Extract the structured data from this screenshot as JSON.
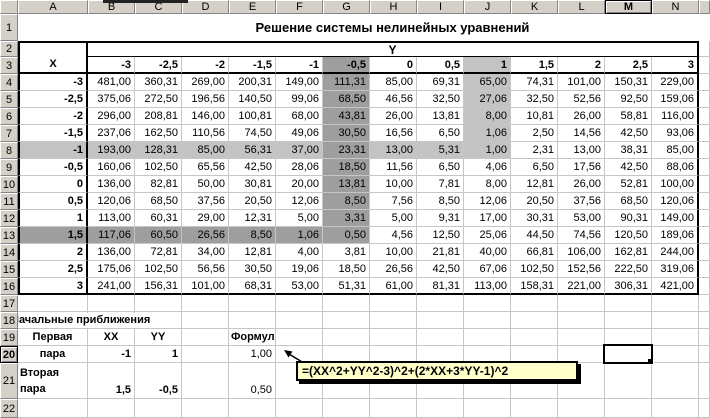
{
  "window": {
    "selected_column": "M",
    "selected_row": "20"
  },
  "sheet": {
    "title": "Решение системы нелинейных уравнений",
    "x_label": "X",
    "y_label": "Y",
    "column_letters": [
      "A",
      "B",
      "C",
      "D",
      "E",
      "F",
      "G",
      "H",
      "I",
      "J",
      "K",
      "L",
      "M",
      "N"
    ],
    "row_numbers": [
      "1",
      "2",
      "3",
      "4",
      "5",
      "6",
      "7",
      "8",
      "9",
      "10",
      "11",
      "12",
      "13",
      "14",
      "15",
      "16",
      "17",
      "18",
      "19",
      "20",
      "21",
      "22"
    ],
    "y_headers": [
      "-3",
      "-2,5",
      "-2",
      "-1,5",
      "-1",
      "-0,5",
      "0",
      "0,5",
      "1",
      "1,5",
      "2",
      "2,5",
      "3"
    ],
    "x_headers": [
      "-3",
      "-2,5",
      "-2",
      "-1,5",
      "-1",
      "-0,5",
      "0",
      "0,5",
      "1",
      "1,5",
      "2",
      "2,5",
      "3"
    ],
    "values": [
      [
        "481,00",
        "360,31",
        "269,00",
        "200,31",
        "149,00",
        "111,31",
        "85,00",
        "69,31",
        "65,00",
        "74,31",
        "101,00",
        "150,31",
        "229,00"
      ],
      [
        "375,06",
        "272,50",
        "196,56",
        "140,50",
        "99,06",
        "68,50",
        "46,56",
        "32,50",
        "27,06",
        "32,50",
        "52,56",
        "92,50",
        "159,06"
      ],
      [
        "296,00",
        "208,81",
        "146,00",
        "100,81",
        "68,00",
        "43,81",
        "26,00",
        "13,81",
        "8,00",
        "10,81",
        "26,00",
        "58,81",
        "116,00"
      ],
      [
        "237,06",
        "162,50",
        "110,56",
        "74,50",
        "49,06",
        "30,50",
        "16,56",
        "6,50",
        "1,06",
        "2,50",
        "14,56",
        "42,50",
        "93,06"
      ],
      [
        "193,00",
        "128,31",
        "85,00",
        "56,31",
        "37,00",
        "23,31",
        "13,00",
        "5,31",
        "1,00",
        "2,31",
        "13,00",
        "38,31",
        "85,00"
      ],
      [
        "160,06",
        "102,50",
        "65,56",
        "42,50",
        "28,06",
        "18,50",
        "11,56",
        "6,50",
        "4,06",
        "6,50",
        "17,56",
        "42,50",
        "88,06"
      ],
      [
        "136,00",
        "82,81",
        "50,00",
        "30,81",
        "20,00",
        "13,81",
        "10,00",
        "7,81",
        "8,00",
        "12,81",
        "26,00",
        "52,81",
        "100,00"
      ],
      [
        "120,06",
        "68,50",
        "37,56",
        "20,50",
        "12,06",
        "8,50",
        "7,56",
        "8,50",
        "12,06",
        "20,50",
        "37,56",
        "68,50",
        "120,06"
      ],
      [
        "113,00",
        "60,31",
        "29,00",
        "12,31",
        "5,00",
        "3,31",
        "5,00",
        "9,31",
        "17,00",
        "30,31",
        "53,00",
        "90,31",
        "149,00"
      ],
      [
        "117,06",
        "60,50",
        "26,56",
        "8,50",
        "1,06",
        "0,50",
        "4,56",
        "12,50",
        "25,06",
        "44,50",
        "74,56",
        "120,50",
        "189,06"
      ],
      [
        "136,00",
        "72,81",
        "34,00",
        "12,81",
        "4,00",
        "3,81",
        "10,00",
        "21,81",
        "40,00",
        "66,81",
        "106,00",
        "162,81",
        "244,00"
      ],
      [
        "175,06",
        "102,50",
        "56,56",
        "30,50",
        "19,06",
        "18,50",
        "26,56",
        "42,50",
        "67,06",
        "102,50",
        "152,56",
        "222,50",
        "319,06"
      ],
      [
        "241,00",
        "156,31",
        "101,00",
        "68,31",
        "53,00",
        "51,31",
        "61,00",
        "81,31",
        "113,00",
        "158,31",
        "221,00",
        "306,31",
        "421,00"
      ]
    ],
    "shading": {
      "dark_col": 5,
      "dark_col_last_row": 9,
      "dark_row": 9,
      "dark_row_last_col": 5,
      "light_col": 8,
      "light_col_last_row": 4,
      "light_row": 4,
      "light_row_last_col": 8
    }
  },
  "approx": {
    "section_title": "Начальные приближения",
    "col_xx": "XX",
    "col_yy": "YY",
    "col_formula": "Формула",
    "first_label": "Первая",
    "first_label2": "пара",
    "first_xx": "-1",
    "first_yy": "1",
    "first_f": "1,00",
    "second_label": "Вторая пара",
    "second_xx": "1,5",
    "second_yy": "-0,5",
    "second_f": "0,50"
  },
  "comment": {
    "text": "=(XX^2+YY^2-3)^2+(2*XX+3*YY-1)^2"
  },
  "colors": {
    "shade_dark": "#9e9e9e",
    "shade_light": "#c3c3c3",
    "header_bg": "#d4d0c8",
    "gridline": "#c6c6c6",
    "comment_bg": "#ffffc9",
    "comment_indicator": "#ff0000"
  }
}
